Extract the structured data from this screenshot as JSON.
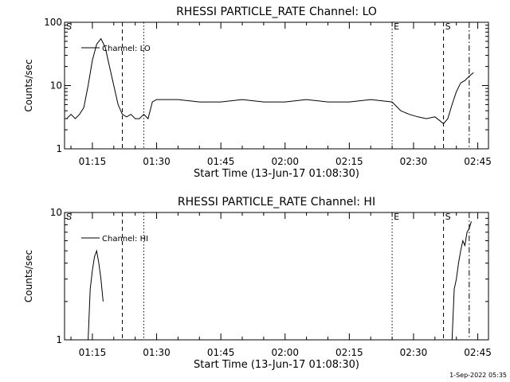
{
  "chart_data": [
    {
      "type": "line",
      "title": "RHESSI PARTICLE_RATE Channel: LO",
      "xlabel": "Start Time (13-Jun-17 01:08:30)",
      "ylabel": "Counts/sec",
      "yscale": "log",
      "ylim": [
        1,
        100
      ],
      "xlim": [
        "01:08:30",
        "02:47:30"
      ],
      "x_ticks": [
        "01:15",
        "01:30",
        "01:45",
        "02:00",
        "02:15",
        "02:30",
        "02:45"
      ],
      "y_ticks": [
        "1",
        "10",
        "100"
      ],
      "legend": {
        "placement": "top-left",
        "entries": [
          "Channel: LO"
        ]
      },
      "series": [
        {
          "name": "Channel: LO",
          "color": "#000000",
          "x": [
            "01:09",
            "01:10",
            "01:11",
            "01:12",
            "01:13",
            "01:14",
            "01:15",
            "01:16",
            "01:17",
            "01:18",
            "01:19",
            "01:20",
            "01:21",
            "01:22",
            "01:23",
            "01:24",
            "01:25",
            "01:26",
            "01:27",
            "01:28",
            "01:29",
            "01:30",
            "01:35",
            "01:40",
            "01:45",
            "01:50",
            "01:55",
            "02:00",
            "02:05",
            "02:10",
            "02:15",
            "02:20",
            "02:25",
            "02:27",
            "02:29",
            "02:31",
            "02:33",
            "02:35",
            "02:37",
            "02:38",
            "02:39",
            "02:40",
            "02:41",
            "02:42",
            "02:43",
            "02:44"
          ],
          "values": [
            3.0,
            3.5,
            3.0,
            3.5,
            4.5,
            10,
            25,
            45,
            55,
            40,
            20,
            10,
            5,
            3.5,
            3.2,
            3.5,
            3.0,
            3.0,
            3.5,
            3.0,
            5.5,
            6.0,
            6.0,
            5.5,
            5.5,
            6.0,
            5.5,
            5.5,
            6.0,
            5.5,
            5.5,
            6.0,
            5.5,
            4.0,
            3.5,
            3.2,
            3.0,
            3.2,
            2.5,
            3.0,
            5.0,
            8.0,
            11,
            12,
            14,
            16
          ]
        }
      ],
      "vlines": [
        {
          "x": "01:22",
          "style": "dashed",
          "label": ""
        },
        {
          "x": "01:27",
          "style": "dotted",
          "label": ""
        },
        {
          "x": "02:25",
          "style": "dotted",
          "label": "E"
        },
        {
          "x": "02:37",
          "style": "dashed",
          "label": "S"
        },
        {
          "x": "02:43",
          "style": "dashdot",
          "label": ""
        }
      ],
      "corner_label": "S"
    },
    {
      "type": "line",
      "title": "RHESSI PARTICLE_RATE Channel: HI",
      "xlabel": "Start Time (13-Jun-17 01:08:30)",
      "ylabel": "Counts/sec",
      "yscale": "log",
      "ylim": [
        1,
        10
      ],
      "xlim": [
        "01:08:30",
        "02:47:30"
      ],
      "x_ticks": [
        "01:15",
        "01:30",
        "01:45",
        "02:00",
        "02:15",
        "02:30",
        "02:45"
      ],
      "y_ticks": [
        "1",
        "10"
      ],
      "legend": {
        "placement": "top-left",
        "entries": [
          "Channel: HI"
        ]
      },
      "series": [
        {
          "name": "Channel: HI",
          "color": "#000000",
          "segments": [
            {
              "x": [
                "01:14:00",
                "01:14:30",
                "01:15:00",
                "01:15:30",
                "01:16:00",
                "01:16:30",
                "01:17:00",
                "01:17:30"
              ],
              "values": [
                1.0,
                2.5,
                3.5,
                4.5,
                5.0,
                4.0,
                3.0,
                2.0
              ]
            },
            {
              "x": [
                "02:39:00",
                "02:39:30",
                "02:40:00",
                "02:40:30",
                "02:41:00",
                "02:41:30",
                "02:42:00",
                "02:42:30",
                "02:43:00",
                "02:43:30"
              ],
              "values": [
                1.0,
                2.5,
                3.0,
                4.0,
                5.0,
                6.0,
                5.5,
                7.0,
                7.5,
                8.5
              ]
            }
          ]
        }
      ],
      "vlines": [
        {
          "x": "01:22",
          "style": "dashed",
          "label": ""
        },
        {
          "x": "01:27",
          "style": "dotted",
          "label": ""
        },
        {
          "x": "02:25",
          "style": "dotted",
          "label": "E"
        },
        {
          "x": "02:37",
          "style": "dashed",
          "label": "S"
        },
        {
          "x": "02:43",
          "style": "dashdot",
          "label": ""
        }
      ],
      "corner_label": "S"
    }
  ],
  "footer": {
    "timestamp": "1-Sep-2022 05:35"
  }
}
